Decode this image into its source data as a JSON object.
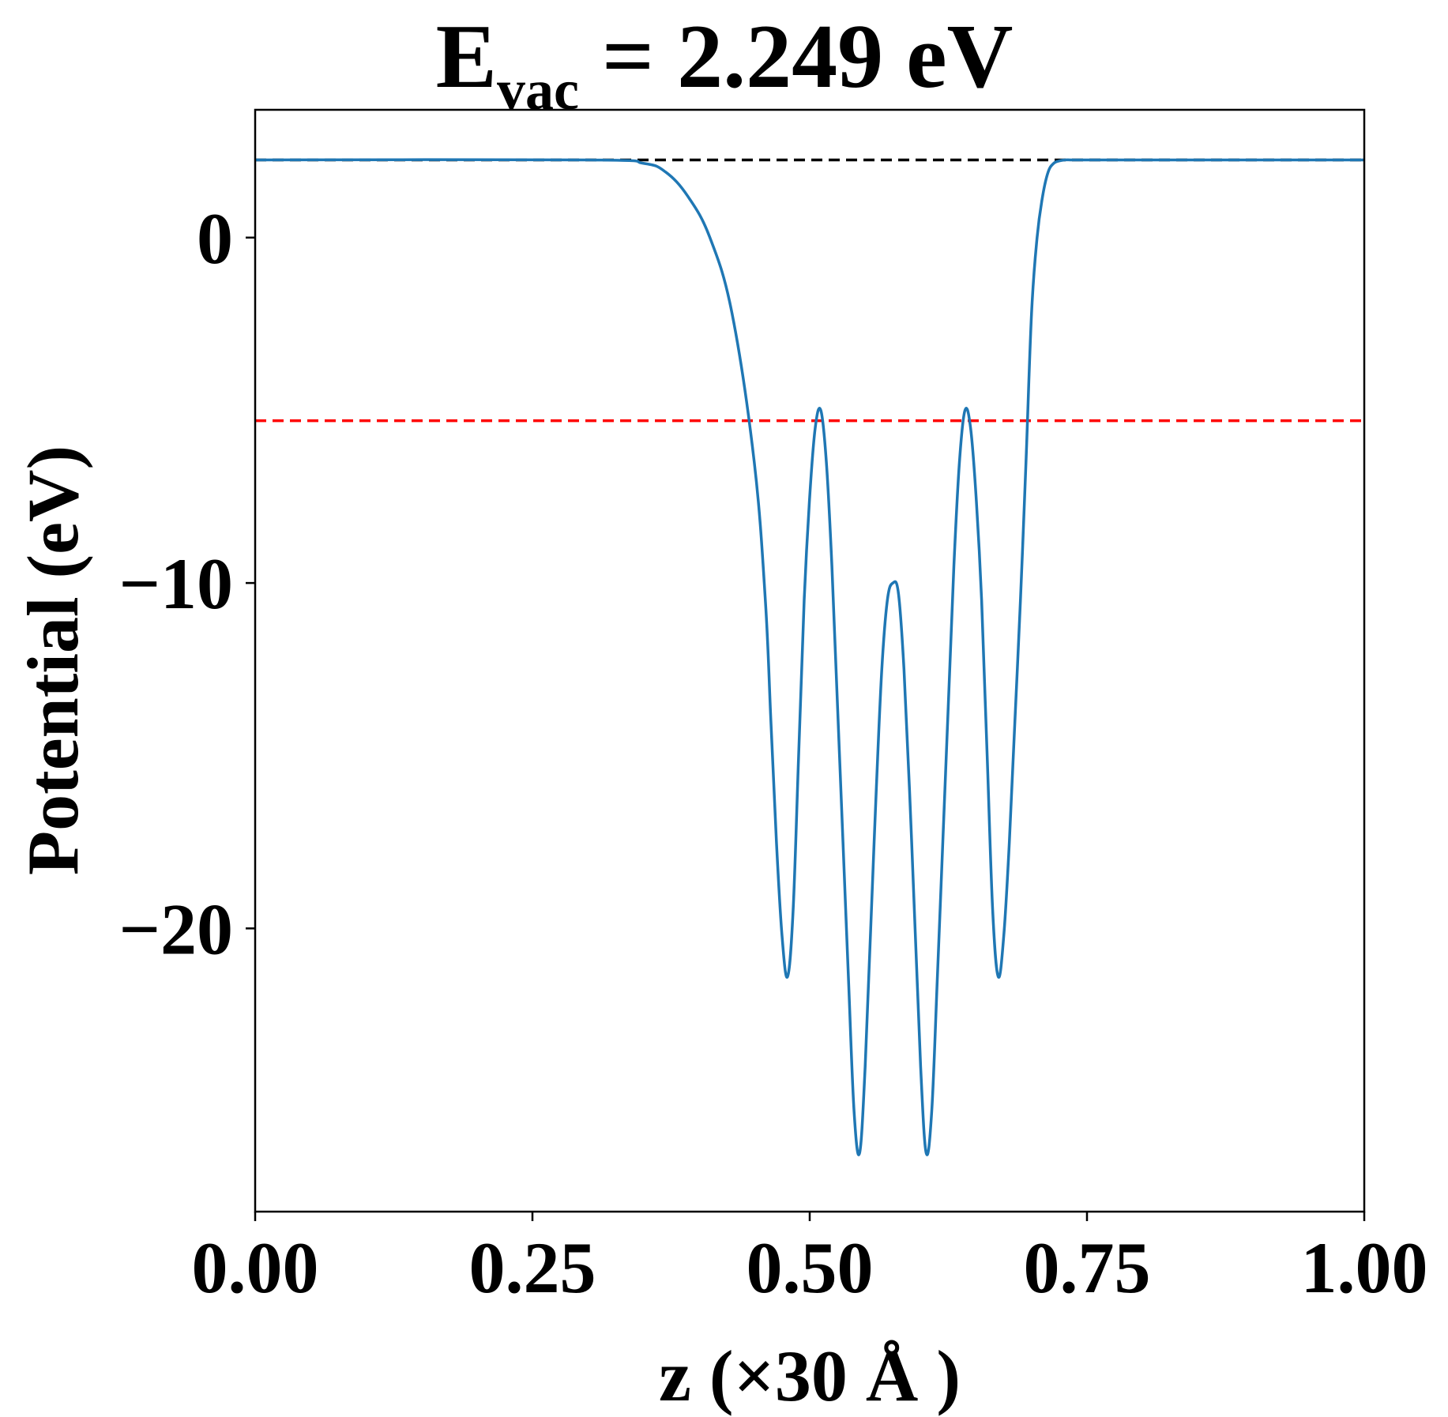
{
  "chart_data": {
    "type": "line",
    "title": {
      "prefix": "E",
      "subscript": "vac",
      "suffix": " = 2.249 eV"
    },
    "xlabel": "z (×30 Å )",
    "ylabel": "Potential (eV)",
    "xlim": [
      0.0,
      1.0
    ],
    "ylim": [
      -28.2,
      3.7
    ],
    "xticks": [
      0.0,
      0.25,
      0.5,
      0.75,
      1.0
    ],
    "xtick_labels": [
      "0.00",
      "0.25",
      "0.50",
      "0.75",
      "1.00"
    ],
    "yticks": [
      0,
      -10,
      -20
    ],
    "ytick_labels": [
      "0",
      "−10",
      "−20"
    ],
    "grid": false,
    "reference_lines": [
      {
        "y": 2.249,
        "style": "dashed",
        "color": "#000000",
        "meaning": "vacuum level"
      },
      {
        "y": -5.3,
        "style": "dashed",
        "color": "#ff0000"
      }
    ],
    "series": [
      {
        "color": "#1f77b4",
        "x": [
          0.0,
          0.3,
          0.35,
          0.37,
          0.39,
          0.41,
          0.43,
          0.45,
          0.46,
          0.465,
          0.47,
          0.475,
          0.48,
          0.485,
          0.49,
          0.495,
          0.5,
          0.505,
          0.51,
          0.515,
          0.52,
          0.525,
          0.53,
          0.535,
          0.54,
          0.545,
          0.55,
          0.555,
          0.56,
          0.565,
          0.57,
          0.575,
          0.58,
          0.585,
          0.59,
          0.595,
          0.6,
          0.605,
          0.61,
          0.615,
          0.62,
          0.625,
          0.63,
          0.635,
          0.64,
          0.645,
          0.65,
          0.655,
          0.66,
          0.665,
          0.67,
          0.675,
          0.68,
          0.685,
          0.69,
          0.695,
          0.7,
          0.705,
          0.71,
          0.715,
          0.72,
          0.725,
          0.73,
          0.735,
          0.74,
          0.745,
          0.75,
          0.755,
          0.76,
          0.765,
          0.77,
          0.775,
          0.78,
          0.79,
          0.81,
          0.83,
          0.85,
          0.87,
          0.9,
          1.0
        ],
        "y": [
          2.249,
          2.249,
          2.15,
          1.9,
          1.2,
          0.0,
          -2.2,
          -6.5,
          -10.5,
          -14.0,
          -17.5,
          -20.2,
          -21.4,
          -19.5,
          -15.0,
          -10.5,
          -7.5,
          -5.5,
          -5.0,
          -6.5,
          -9.5,
          -13.5,
          -17.5,
          -21.5,
          -25.3,
          -26.5,
          -24.0,
          -20.0,
          -16.0,
          -12.5,
          -10.5,
          -10.0,
          -10.3,
          -12.5,
          -16.0,
          -20.0,
          -24.0,
          -26.5,
          -25.3,
          -21.5,
          -17.5,
          -13.5,
          -9.5,
          -6.5,
          -5.0,
          -5.5,
          -7.5,
          -10.5,
          -15.0,
          -19.5,
          -21.4,
          -20.2,
          -17.5,
          -14.0,
          -10.5,
          -6.5,
          -2.2,
          0.0,
          1.2,
          1.9,
          2.15,
          2.22,
          2.249,
          2.249,
          2.249,
          2.249,
          2.249,
          2.249,
          2.249,
          2.249,
          2.249,
          2.249,
          2.249,
          2.249,
          2.249,
          2.249,
          2.249,
          2.249,
          2.249,
          2.249
        ]
      }
    ]
  }
}
